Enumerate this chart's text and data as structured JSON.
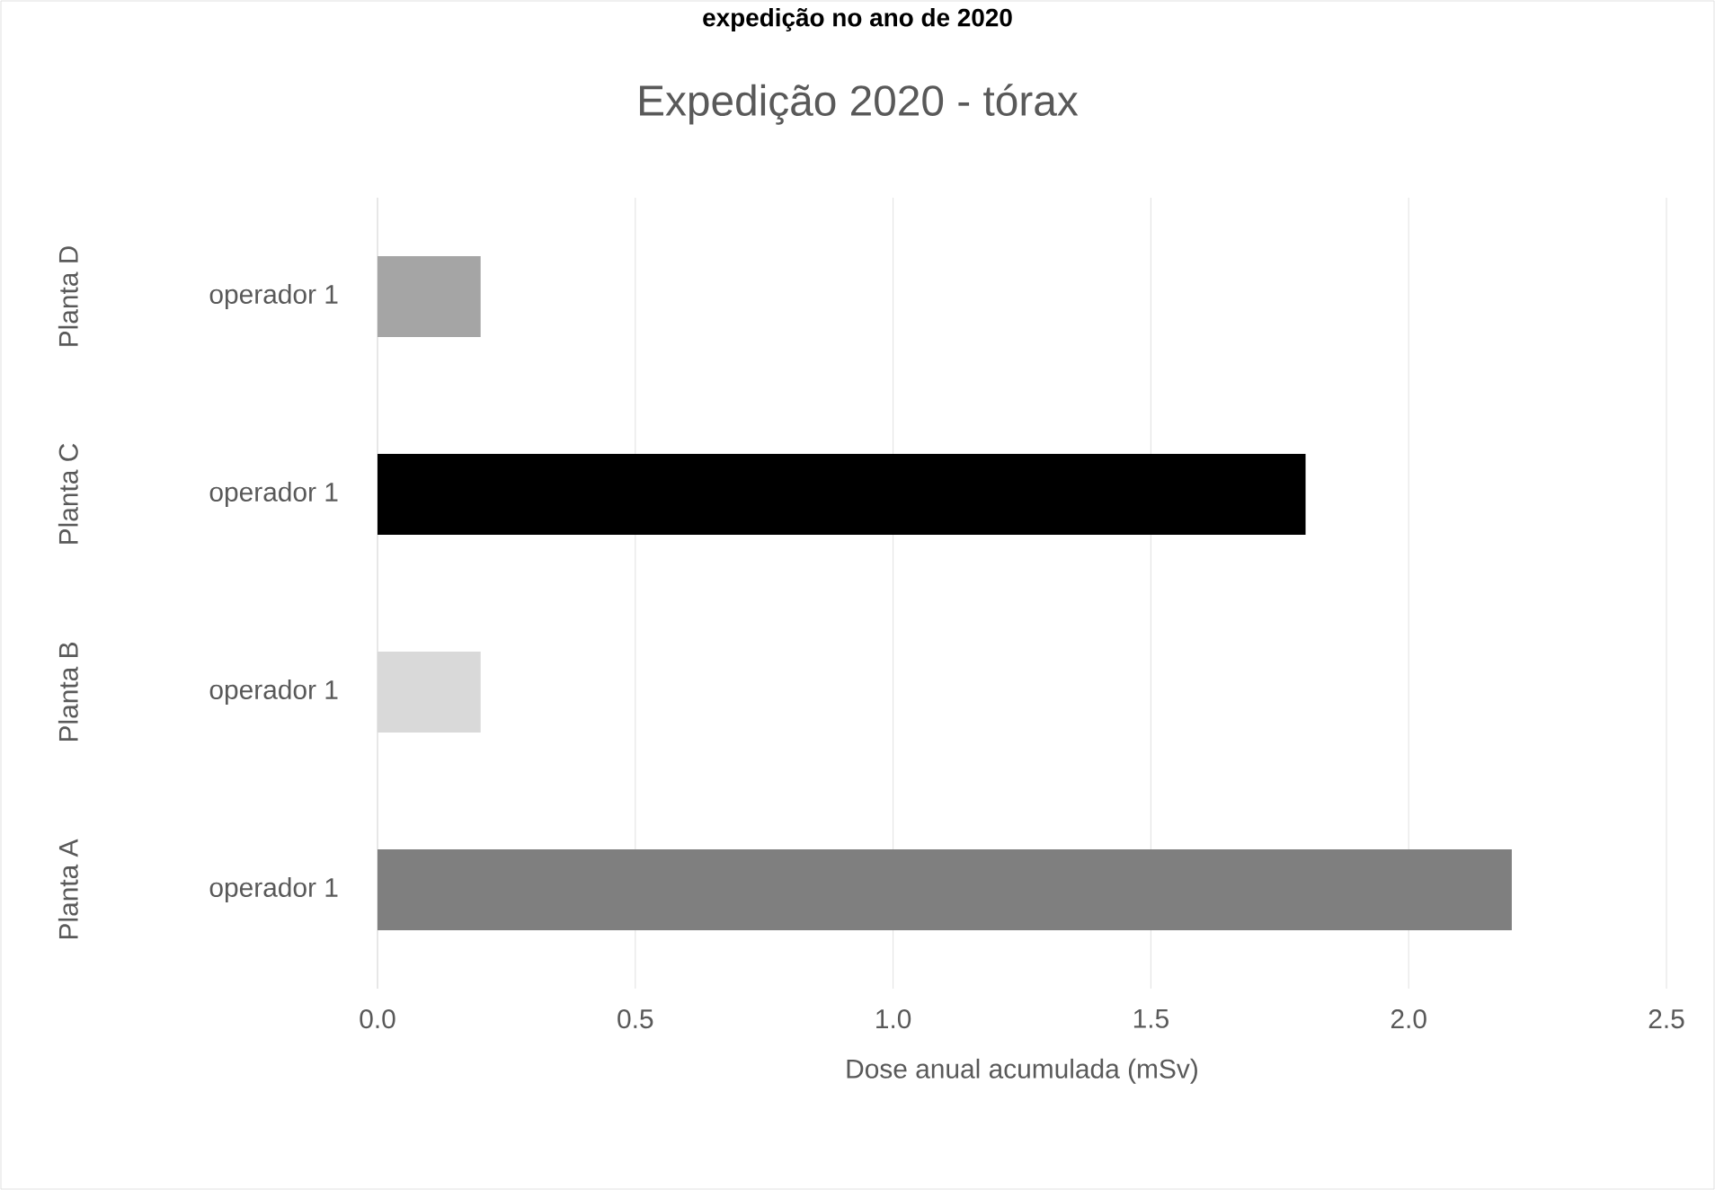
{
  "chart_data": {
    "type": "bar",
    "orientation": "horizontal",
    "title": "Expedição 2020 - tórax",
    "xlabel": "Dose anual acumulada (mSv)",
    "categories": [
      "operador 1",
      "operador 1",
      "operador 1",
      "operador 1"
    ],
    "values": [
      0.2,
      1.8,
      0.2,
      2.2
    ],
    "colors": [
      "#a5a5a5",
      "#000000",
      "#d9d9d9",
      "#7f7f7f"
    ],
    "xlim": [
      0,
      2.5
    ],
    "xticks": [
      {
        "value": 0,
        "label": "0.0"
      },
      {
        "value": 0.5,
        "label": "0.5"
      },
      {
        "value": 1,
        "label": "1.0"
      },
      {
        "value": 1.5,
        "label": "1.5"
      },
      {
        "value": 2,
        "label": "2.0"
      },
      {
        "value": 2.5,
        "label": "2.5"
      }
    ],
    "grid": "x",
    "annotations": [
      "expedição no ano de 2020",
      "Planta D",
      "Planta C",
      "Planta B",
      "Planta A"
    ]
  }
}
